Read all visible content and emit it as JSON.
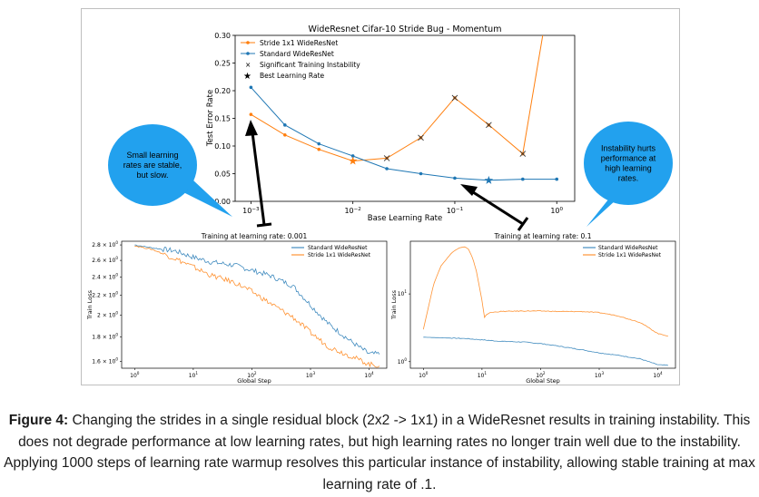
{
  "chart_data": [
    {
      "type": "line",
      "title": "WideResnet Cifar-10 Stride Bug - Momentum",
      "xlabel": "Base Learning Rate",
      "ylabel": "Test Error Rate",
      "xscale": "log",
      "xlim": [
        0.0007,
        1.5
      ],
      "ylim": [
        0.0,
        0.3
      ],
      "yticks": [
        "0.00",
        "0.05",
        "0.10",
        "0.15",
        "0.20",
        "0.25",
        "0.30"
      ],
      "xticks": [
        {
          "value": 0.001,
          "base": "10",
          "exp": "−3"
        },
        {
          "value": 0.01,
          "base": "10",
          "exp": "−2"
        },
        {
          "value": 0.1,
          "base": "10",
          "exp": "−1"
        },
        {
          "value": 1,
          "base": "10",
          "exp": "0"
        }
      ],
      "legend_position": "top-left",
      "series": [
        {
          "name": "Stride 1x1 WideResNet",
          "color": "#ff7f0e",
          "marker": "dot",
          "x": [
            0.001,
            0.002154,
            0.004642,
            0.01,
            0.02154,
            0.04642,
            0.1,
            0.2154,
            0.4642,
            1.0
          ],
          "y": [
            0.157,
            0.12,
            0.094,
            0.073,
            0.078,
            0.115,
            0.187,
            0.138,
            0.086,
            0.45
          ]
        },
        {
          "name": "Standard WideResNet",
          "color": "#1f77b4",
          "marker": "dot",
          "x": [
            0.001,
            0.002154,
            0.004642,
            0.01,
            0.02154,
            0.04642,
            0.1,
            0.2154,
            0.4642,
            1.0
          ],
          "y": [
            0.206,
            0.138,
            0.104,
            0.082,
            0.059,
            0.05,
            0.042,
            0.038,
            0.04,
            0.04
          ]
        }
      ],
      "instability_markers": {
        "name": "Significant Training Instability",
        "x": [
          0.02154,
          0.04642,
          0.1,
          0.2154,
          0.4642
        ],
        "y": [
          0.078,
          0.115,
          0.187,
          0.138,
          0.086
        ]
      },
      "best_markers": {
        "name": "Best Learning Rate",
        "points": [
          {
            "x": 0.01,
            "y": 0.073,
            "color": "#ff7f0e"
          },
          {
            "x": 0.2154,
            "y": 0.038,
            "color": "#1f77b4"
          }
        ]
      }
    },
    {
      "type": "line",
      "title": "Training at learning rate: 0.001",
      "xlabel": "Global Step",
      "ylabel": "Train Loss",
      "xscale": "log",
      "yscale": "log",
      "xlim": [
        0.6,
        20000
      ],
      "ylim": [
        1.55,
        2.85
      ],
      "xticks": [
        {
          "value": 1,
          "exp": "0"
        },
        {
          "value": 10,
          "exp": "1"
        },
        {
          "value": 100,
          "exp": "2"
        },
        {
          "value": 1000,
          "exp": "3"
        },
        {
          "value": 10000,
          "exp": "4"
        }
      ],
      "yticks": [
        {
          "value": 2.8,
          "mant": "2.8 × 10",
          "exp": "0"
        },
        {
          "value": 2.6,
          "mant": "2.6 × 10",
          "exp": "0"
        },
        {
          "value": 2.4,
          "mant": "2.4 × 10",
          "exp": "0"
        },
        {
          "value": 2.2,
          "mant": "2.2 × 10",
          "exp": "0"
        },
        {
          "value": 2.0,
          "mant": "2 × 10",
          "exp": "0"
        },
        {
          "value": 1.8,
          "mant": "1.8 × 10",
          "exp": "0"
        },
        {
          "value": 1.6,
          "mant": "1.6 × 10",
          "exp": "0"
        }
      ],
      "legend_position": "top-right",
      "series": [
        {
          "name": "Standard WideResNet",
          "color": "#1f77b4",
          "x": [
            1,
            2,
            5,
            10,
            20,
            50,
            100,
            200,
            500,
            1000,
            2000,
            5000,
            10000,
            15000
          ],
          "y": [
            2.8,
            2.76,
            2.72,
            2.64,
            2.58,
            2.54,
            2.48,
            2.42,
            2.3,
            2.1,
            1.92,
            1.76,
            1.66,
            1.66
          ]
        },
        {
          "name": "Stride 1x1 WideResNet",
          "color": "#ff7f0e",
          "x": [
            1,
            2,
            5,
            10,
            20,
            50,
            100,
            200,
            500,
            1000,
            2000,
            5000,
            10000,
            15000
          ],
          "y": [
            2.79,
            2.74,
            2.62,
            2.52,
            2.42,
            2.34,
            2.24,
            2.12,
            1.98,
            1.84,
            1.72,
            1.64,
            1.58,
            1.57
          ]
        }
      ]
    },
    {
      "type": "line",
      "title": "Training at learning rate: 0.1",
      "xlabel": "Global Step",
      "ylabel": "Train Loss",
      "xscale": "log",
      "yscale": "log",
      "xlim": [
        0.6,
        20000
      ],
      "ylim": [
        0.8,
        60
      ],
      "xticks": [
        {
          "value": 1,
          "exp": "0"
        },
        {
          "value": 10,
          "exp": "1"
        },
        {
          "value": 100,
          "exp": "2"
        },
        {
          "value": 1000,
          "exp": "3"
        },
        {
          "value": 10000,
          "exp": "4"
        }
      ],
      "yticks": [
        {
          "value": 10,
          "mant": "10",
          "exp": "1"
        },
        {
          "value": 1,
          "mant": "10",
          "exp": "0"
        }
      ],
      "legend_position": "top-right",
      "series": [
        {
          "name": "Standard WideResNet",
          "color": "#1f77b4",
          "x": [
            1,
            2,
            5,
            10,
            20,
            50,
            100,
            200,
            500,
            1000,
            2000,
            5000,
            10000,
            15000
          ],
          "y": [
            2.3,
            2.25,
            2.2,
            2.1,
            2.0,
            1.95,
            1.85,
            1.7,
            1.5,
            1.35,
            1.25,
            1.1,
            0.9,
            0.88
          ]
        },
        {
          "name": "Stride 1x1 WideResNet",
          "color": "#ff7f0e",
          "x": [
            1,
            1.5,
            2,
            3,
            4,
            5,
            6,
            7,
            8,
            10,
            11,
            12,
            14,
            20,
            50,
            100,
            200,
            500,
            1000,
            2000,
            5000,
            10000,
            15000
          ],
          "y": [
            3.0,
            14,
            26,
            40,
            48,
            50,
            45,
            33,
            22,
            8,
            4.5,
            5.0,
            5.3,
            5.5,
            5.6,
            5.6,
            5.5,
            5.5,
            5.3,
            4.8,
            3.8,
            2.6,
            2.4
          ]
        }
      ]
    }
  ],
  "annotations": {
    "left_bubble": "Small learning rates are stable, but slow.",
    "right_bubble": "Instability hurts performance at high learning rates."
  },
  "caption": {
    "label": "Figure 4:",
    "text": " Changing the strides in a single residual block (2x2 -> 1x1) in a WideResnet results in training instability. This does not degrade performance at low learning rates, but high learning rates no longer train well due to the instability. Applying 1000 steps of learning rate warmup resolves this particular instance of instability, allowing stable training at max learning rate of .1."
  }
}
